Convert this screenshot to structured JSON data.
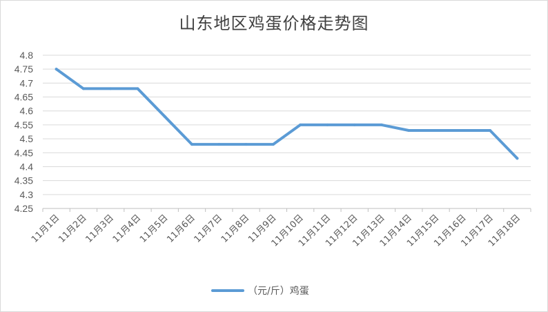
{
  "chart_data": {
    "type": "line",
    "title": "山东地区鸡蛋价格走势图",
    "categories": [
      "11月1日",
      "11月2日",
      "11月3日",
      "11月4日",
      "11月5日",
      "11月6日",
      "11月7日",
      "11月8日",
      "11月9日",
      "11月10日",
      "11月11日",
      "11月12日",
      "11月13日",
      "11月14日",
      "11月15日",
      "11月16日",
      "11月17日",
      "11月18日"
    ],
    "series": [
      {
        "name": "（元/斤）鸡蛋",
        "color": "#5b9bd5",
        "values": [
          4.75,
          4.68,
          4.68,
          4.68,
          4.58,
          4.48,
          4.48,
          4.48,
          4.48,
          4.55,
          4.55,
          4.55,
          4.55,
          4.53,
          4.53,
          4.53,
          4.53,
          4.43
        ]
      }
    ],
    "y_ticks": [
      "4.25",
      "4.3",
      "4.35",
      "4.4",
      "4.45",
      "4.5",
      "4.55",
      "4.6",
      "4.65",
      "4.7",
      "4.75",
      "4.8"
    ],
    "ylim": [
      4.25,
      4.8
    ],
    "grid": true,
    "legend_position": "bottom"
  }
}
